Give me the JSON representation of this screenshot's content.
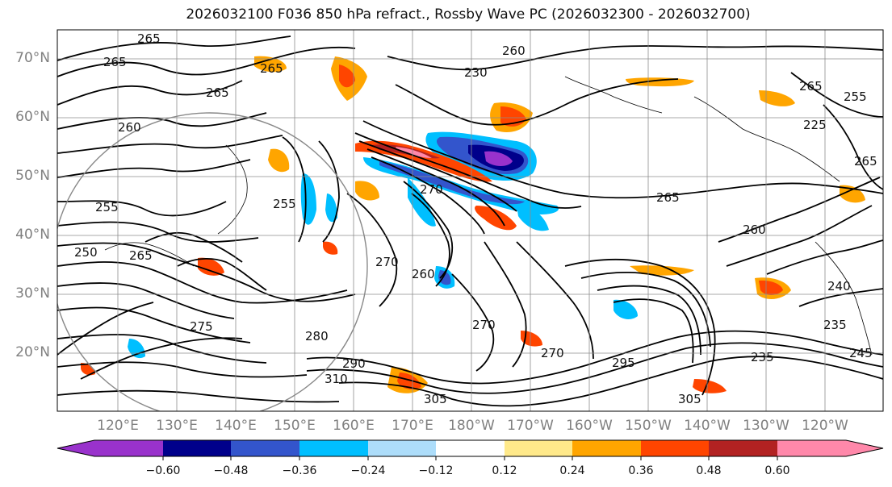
{
  "title": "2026032100 F036 850 hPa refract., Rossby Wave PC (2026032300 - 2026032700)",
  "lat_labels": [
    "70°N",
    "60°N",
    "50°N",
    "40°N",
    "30°N",
    "20°N"
  ],
  "lon_labels": [
    "120°E",
    "130°E",
    "140°E",
    "150°E",
    "160°E",
    "170°E",
    "180°W",
    "170°W",
    "160°W",
    "150°W",
    "140°W",
    "130°W",
    "120°W"
  ],
  "contour_labels": [
    "265",
    "265",
    "260",
    "260",
    "265",
    "265",
    "255",
    "255",
    "250",
    "265",
    "270",
    "260",
    "265",
    "275",
    "280",
    "290",
    "310",
    "305",
    "305",
    "295",
    "260",
    "270",
    "265",
    "255",
    "235",
    "245",
    "235",
    "240",
    "230",
    "225",
    "270",
    "265",
    "270"
  ],
  "colorbar": {
    "ticks": [
      "−0.60",
      "−0.48",
      "−0.36",
      "−0.24",
      "−0.12",
      "0.12",
      "0.24",
      "0.36",
      "0.48",
      "0.60"
    ],
    "colors": [
      "#9932CC",
      "#00008B",
      "#3355CC",
      "#00BFFF",
      "#ADDDFA",
      "#FFFFFF",
      "#FFE98A",
      "#FFA500",
      "#FF4500",
      "#B22222",
      "#FF88AA"
    ]
  }
}
